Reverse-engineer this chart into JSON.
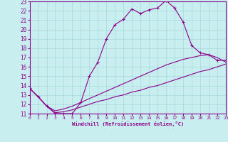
{
  "xlabel": "Windchill (Refroidissement éolien,°C)",
  "xlim": [
    0,
    23
  ],
  "ylim": [
    11,
    23
  ],
  "xticks": [
    0,
    1,
    2,
    3,
    4,
    5,
    6,
    7,
    8,
    9,
    10,
    11,
    12,
    13,
    14,
    15,
    16,
    17,
    18,
    19,
    20,
    21,
    22,
    23
  ],
  "yticks": [
    11,
    12,
    13,
    14,
    15,
    16,
    17,
    18,
    19,
    20,
    21,
    22,
    23
  ],
  "bg_color": "#c8eef0",
  "line_color": "#8B008B",
  "grid_color": "#a8d8dc",
  "line1_x": [
    0,
    1,
    2,
    3,
    4,
    5,
    6,
    7,
    8,
    9,
    10,
    11,
    12,
    13,
    14,
    15,
    16,
    17,
    18,
    19,
    20,
    21,
    22,
    23
  ],
  "line1_y": [
    13.7,
    12.8,
    11.8,
    11.0,
    11.0,
    11.0,
    12.2,
    15.0,
    16.5,
    19.0,
    20.5,
    21.1,
    22.2,
    21.7,
    22.1,
    22.3,
    23.1,
    22.3,
    20.8,
    18.3,
    17.5,
    17.3,
    16.7,
    16.7
  ],
  "line2_x": [
    0,
    1,
    2,
    3,
    4,
    5,
    6,
    7,
    8,
    9,
    10,
    11,
    12,
    13,
    14,
    15,
    16,
    17,
    18,
    19,
    20,
    21,
    22,
    23
  ],
  "line2_y": [
    13.7,
    12.8,
    11.8,
    11.3,
    11.5,
    11.8,
    12.2,
    12.6,
    13.0,
    13.4,
    13.8,
    14.2,
    14.6,
    15.0,
    15.4,
    15.8,
    16.2,
    16.5,
    16.8,
    17.0,
    17.2,
    17.3,
    17.0,
    16.5
  ],
  "line3_x": [
    0,
    1,
    2,
    3,
    4,
    5,
    6,
    7,
    8,
    9,
    10,
    11,
    12,
    13,
    14,
    15,
    16,
    17,
    18,
    19,
    20,
    21,
    22,
    23
  ],
  "line3_y": [
    13.7,
    12.8,
    11.8,
    11.1,
    11.2,
    11.4,
    11.7,
    12.0,
    12.3,
    12.5,
    12.8,
    13.0,
    13.3,
    13.5,
    13.8,
    14.0,
    14.3,
    14.6,
    14.9,
    15.2,
    15.5,
    15.7,
    16.0,
    16.3
  ]
}
